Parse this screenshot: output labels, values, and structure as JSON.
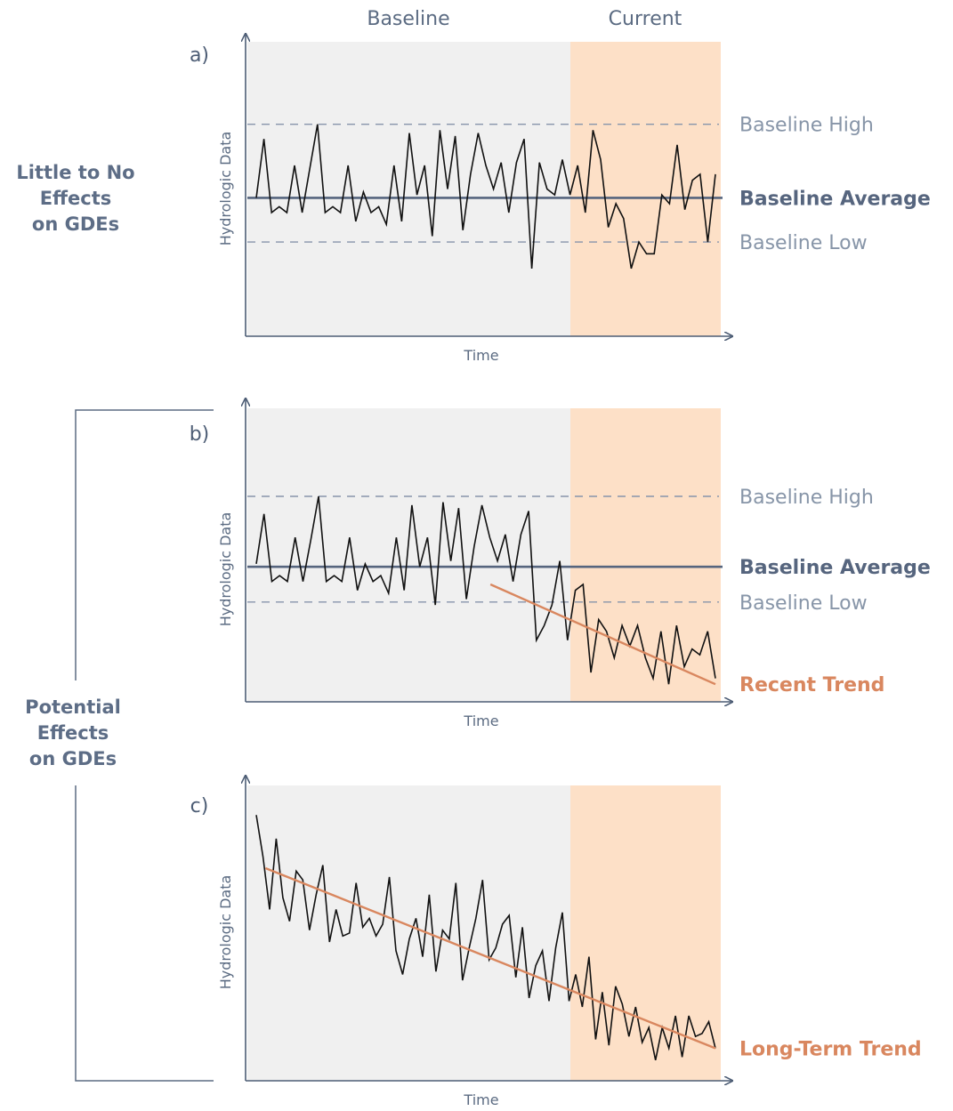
{
  "headers": {
    "baseline": "Baseline",
    "current": "Current"
  },
  "group_labels": {
    "top": [
      "Little to No",
      "Effects",
      "on GDEs"
    ],
    "bottom": [
      "Potential",
      "Effects",
      "on GDEs"
    ]
  },
  "colors": {
    "baseline_bg": "#f0f0f0",
    "current_bg": "#fde0c7",
    "axis": "#4d5d75",
    "reference": "#56657e",
    "dashed": "#8794ab",
    "series": "#111111",
    "trend": "#d9875f"
  },
  "chart_data": [
    {
      "type": "line",
      "panel": "a)",
      "xlabel": "Time",
      "ylabel": "Hydrologic Data",
      "baseline_high_label": "Baseline High",
      "baseline_average_label": "Baseline Average",
      "baseline_low_label": "Baseline Low",
      "baseline_high": 0.72,
      "baseline_average": 0.47,
      "baseline_low": 0.32,
      "x_range": [
        0,
        100
      ],
      "y_range": [
        0,
        1
      ],
      "current_start": 69,
      "values": [
        0.47,
        0.67,
        0.42,
        0.44,
        0.42,
        0.58,
        0.42,
        0.57,
        0.72,
        0.42,
        0.44,
        0.42,
        0.58,
        0.39,
        0.49,
        0.42,
        0.44,
        0.38,
        0.58,
        0.39,
        0.69,
        0.48,
        0.58,
        0.34,
        0.7,
        0.5,
        0.68,
        0.36,
        0.55,
        0.69,
        0.58,
        0.5,
        0.59,
        0.42,
        0.59,
        0.67,
        0.23,
        0.59,
        0.5,
        0.48,
        0.6,
        0.48,
        0.58,
        0.42,
        0.7,
        0.6,
        0.37,
        0.45,
        0.4,
        0.23,
        0.32,
        0.28,
        0.28,
        0.48,
        0.45,
        0.65,
        0.43,
        0.53,
        0.55,
        0.32,
        0.55
      ],
      "trend_label": "",
      "trend": null
    },
    {
      "type": "line",
      "panel": "b)",
      "xlabel": "Time",
      "ylabel": "Hydrologic Data",
      "baseline_high_label": "Baseline High",
      "baseline_average_label": "Baseline Average",
      "baseline_low_label": "Baseline Low",
      "baseline_high": 0.7,
      "baseline_average": 0.46,
      "baseline_low": 0.34,
      "x_range": [
        0,
        100
      ],
      "y_range": [
        0,
        1
      ],
      "current_start": 69,
      "values": [
        0.47,
        0.64,
        0.41,
        0.43,
        0.41,
        0.56,
        0.41,
        0.55,
        0.7,
        0.41,
        0.43,
        0.41,
        0.56,
        0.38,
        0.47,
        0.41,
        0.43,
        0.37,
        0.56,
        0.38,
        0.67,
        0.46,
        0.56,
        0.33,
        0.68,
        0.48,
        0.66,
        0.35,
        0.53,
        0.67,
        0.56,
        0.48,
        0.57,
        0.41,
        0.57,
        0.65,
        0.21,
        0.26,
        0.33,
        0.48,
        0.21,
        0.38,
        0.4,
        0.1,
        0.28,
        0.24,
        0.15,
        0.26,
        0.19,
        0.26,
        0.15,
        0.08,
        0.24,
        0.06,
        0.26,
        0.12,
        0.18,
        0.16,
        0.24,
        0.08
      ],
      "trend_label": "Recent Trend",
      "trend": {
        "x": [
          51,
          100
        ],
        "y": [
          0.4,
          0.06
        ]
      }
    },
    {
      "type": "line",
      "panel": "c)",
      "xlabel": "Time",
      "ylabel": "Hydrologic Data",
      "baseline_high_label": "",
      "baseline_average_label": "",
      "baseline_low_label": "",
      "baseline_high": null,
      "baseline_average": null,
      "baseline_low": null,
      "x_range": [
        0,
        100
      ],
      "y_range": [
        0,
        1
      ],
      "current_start": 69,
      "values": [
        0.9,
        0.76,
        0.58,
        0.82,
        0.62,
        0.54,
        0.71,
        0.68,
        0.51,
        0.63,
        0.73,
        0.47,
        0.58,
        0.49,
        0.5,
        0.67,
        0.52,
        0.55,
        0.49,
        0.53,
        0.69,
        0.44,
        0.36,
        0.48,
        0.55,
        0.42,
        0.63,
        0.37,
        0.51,
        0.48,
        0.67,
        0.34,
        0.45,
        0.55,
        0.68,
        0.41,
        0.45,
        0.53,
        0.56,
        0.35,
        0.52,
        0.28,
        0.39,
        0.44,
        0.27,
        0.45,
        0.57,
        0.27,
        0.36,
        0.25,
        0.42,
        0.14,
        0.3,
        0.12,
        0.32,
        0.26,
        0.15,
        0.25,
        0.13,
        0.18,
        0.07,
        0.18,
        0.11,
        0.22,
        0.08,
        0.22,
        0.15,
        0.16,
        0.2,
        0.11
      ],
      "trend_label": "Long-Term Trend",
      "trend": {
        "x": [
          2,
          100
        ],
        "y": [
          0.72,
          0.11
        ]
      }
    }
  ]
}
